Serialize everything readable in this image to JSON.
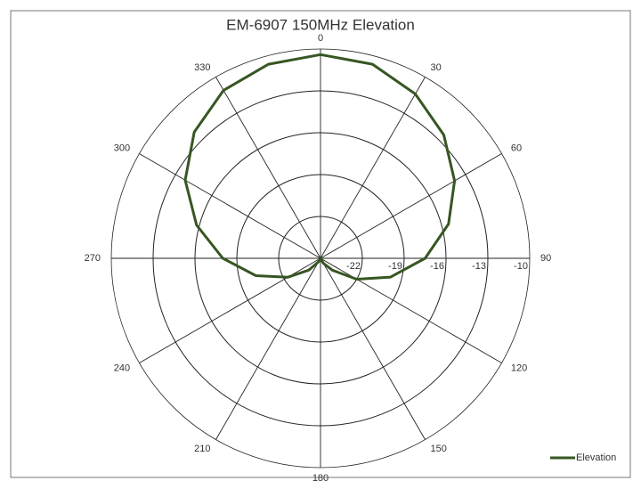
{
  "chart_data": {
    "type": "polar",
    "title": "EM-6907 150MHz Elevation",
    "theta": [
      0,
      15,
      30,
      45,
      60,
      75,
      90,
      105,
      120,
      135,
      150,
      165,
      180,
      195,
      210,
      225,
      240,
      255,
      270,
      285,
      300,
      315,
      330,
      345
    ],
    "series": [
      {
        "name": "Elevation",
        "color": "#375623",
        "values": [
          -10.4,
          -10.6,
          -11.4,
          -12.5,
          -13.9,
          -15.5,
          -17.5,
          -19.8,
          -22,
          -23.8,
          -24.6,
          -25,
          -25,
          -25,
          -24.7,
          -23.8,
          -22.3,
          -20.2,
          -18,
          -15.8,
          -13.8,
          -12.2,
          -11.1,
          -10.6
        ]
      }
    ],
    "thetaticks": [
      0,
      30,
      60,
      90,
      120,
      150,
      180,
      210,
      240,
      270,
      300,
      330
    ],
    "rlim": [
      -25,
      -10
    ],
    "rticks": [
      -22,
      -19,
      -16,
      -13,
      -10
    ],
    "grid": true,
    "legend": "bottom-right"
  }
}
